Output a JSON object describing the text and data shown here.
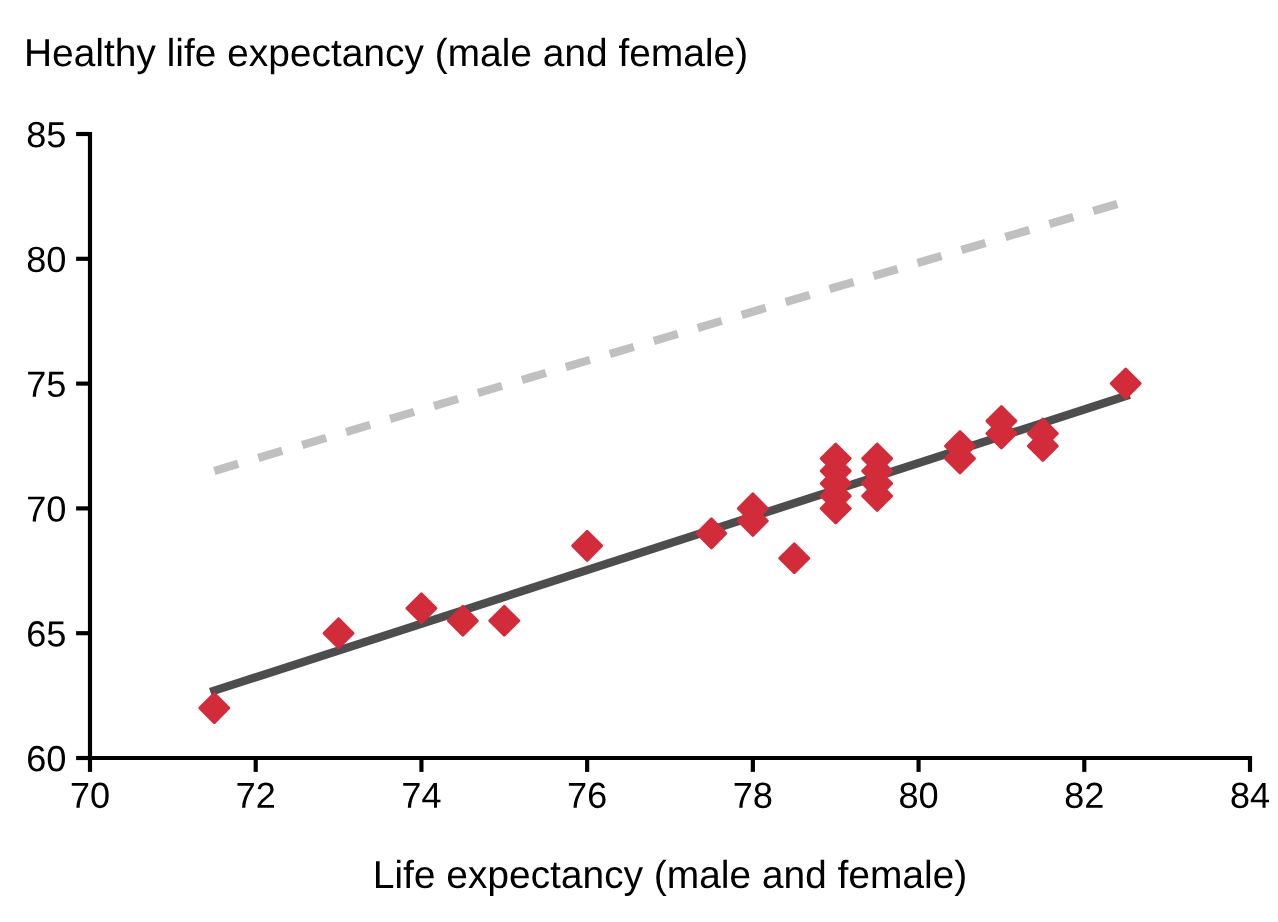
{
  "chart_data": {
    "type": "scatter",
    "ylabel": "Healthy life expectancy (male and female)",
    "xlabel": "Life expectancy (male and female)",
    "xlim": [
      70,
      84
    ],
    "xticks": [
      70,
      72,
      74,
      76,
      78,
      80,
      82,
      84
    ],
    "ylim": [
      60,
      85
    ],
    "yticks": [
      60,
      65,
      70,
      75,
      80,
      85
    ],
    "grid": false,
    "legend": false,
    "series": [
      {
        "color": "#d22b3a",
        "marker": "diamond",
        "x": [
          71.5,
          73,
          74,
          74.5,
          75,
          76,
          77.5,
          78,
          78,
          78.5,
          79,
          79,
          79,
          79,
          79,
          79.5,
          79.5,
          79.5,
          79.5,
          80.5,
          80.5,
          81,
          81,
          81.5,
          81.5,
          82.5
        ],
        "values": [
          62,
          65,
          66,
          65.5,
          65.5,
          68.5,
          69,
          70,
          69.5,
          68,
          72,
          71.5,
          71,
          70.5,
          70,
          72,
          71.5,
          71,
          70.5,
          72.5,
          72,
          73.5,
          73,
          73,
          72.5,
          75
        ]
      },
      {
        "type": "line",
        "color": "#4d4d4d",
        "line_style": "solid",
        "x": [
          71.5,
          82.5
        ],
        "values": [
          62.7,
          74.5
        ]
      },
      {
        "type": "line",
        "color": "#c0c0c0",
        "line_style": "dashed",
        "x": [
          71.5,
          82.5
        ],
        "values": [
          71.5,
          82.3
        ]
      }
    ]
  }
}
